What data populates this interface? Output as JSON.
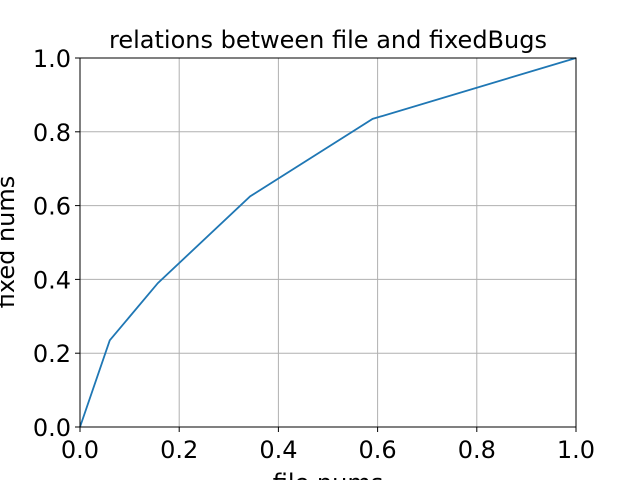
{
  "chart_data": {
    "type": "line",
    "title": "relations between file and fixedBugs",
    "xlabel": "file nums",
    "ylabel": "fixed nums",
    "xlim": [
      0,
      1
    ],
    "ylim": [
      0,
      1
    ],
    "xticks": [
      "0.0",
      "0.2",
      "0.4",
      "0.6",
      "0.8",
      "1.0"
    ],
    "yticks": [
      "0.0",
      "0.2",
      "0.4",
      "0.6",
      "0.8",
      "1.0"
    ],
    "grid": true,
    "series": [
      {
        "color": "#1f77b4",
        "x": [
          0.0,
          0.06,
          0.157,
          0.343,
          0.59,
          1.0
        ],
        "y": [
          0.0,
          0.235,
          0.39,
          0.625,
          0.835,
          1.0
        ]
      }
    ]
  }
}
